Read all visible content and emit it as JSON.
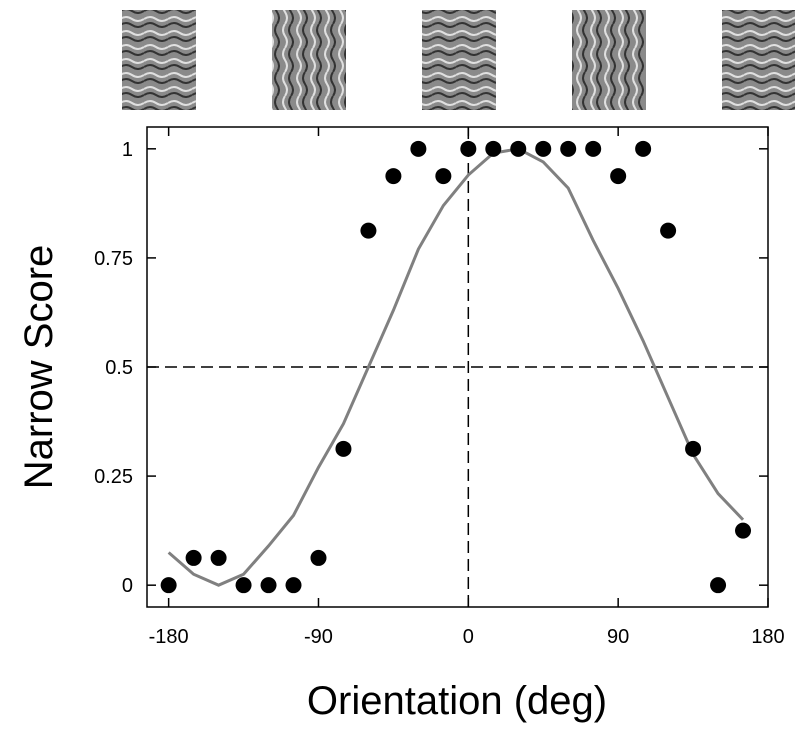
{
  "chart_data": {
    "type": "scatter",
    "x_label": "Orientation (deg)",
    "y_label": "Narrow Score",
    "x": [
      -180,
      -165,
      -150,
      -135,
      -120,
      -105,
      -90,
      -75,
      -60,
      -45,
      -30,
      -15,
      0,
      15,
      30,
      45,
      60,
      75,
      90,
      105,
      120,
      135,
      150,
      165
    ],
    "values": [
      0,
      0.0625,
      0.0625,
      0,
      0,
      0,
      0.0625,
      0.3125,
      0.8125,
      0.9375,
      1,
      0.9375,
      1,
      1,
      1,
      1,
      1,
      1,
      0.9375,
      1,
      0.8125,
      0.3125,
      0,
      0.125
    ],
    "color": "#000000",
    "fit": {
      "color": "#808080",
      "x": [
        -180,
        -165,
        -150,
        -135,
        -120,
        -105,
        -90,
        -75,
        -60,
        -45,
        -30,
        -15,
        0,
        15,
        30,
        45,
        60,
        75,
        90,
        105,
        120,
        135,
        150,
        165
      ],
      "values": [
        0.075,
        0.025,
        0,
        0.025,
        0.09,
        0.16,
        0.27,
        0.37,
        0.5,
        0.63,
        0.77,
        0.87,
        0.94,
        0.99,
        1,
        0.97,
        0.91,
        0.79,
        0.68,
        0.56,
        0.43,
        0.3,
        0.21,
        0.15
      ]
    },
    "reference_lines": {
      "x": 0,
      "y": 0.5
    },
    "xlim": [
      -193,
      180
    ],
    "ylim": [
      -0.05,
      1.05
    ],
    "xticks": [
      -180,
      -90,
      0,
      90,
      180
    ],
    "yticks": [
      0,
      0.25,
      0.5,
      0.75,
      1
    ]
  }
}
